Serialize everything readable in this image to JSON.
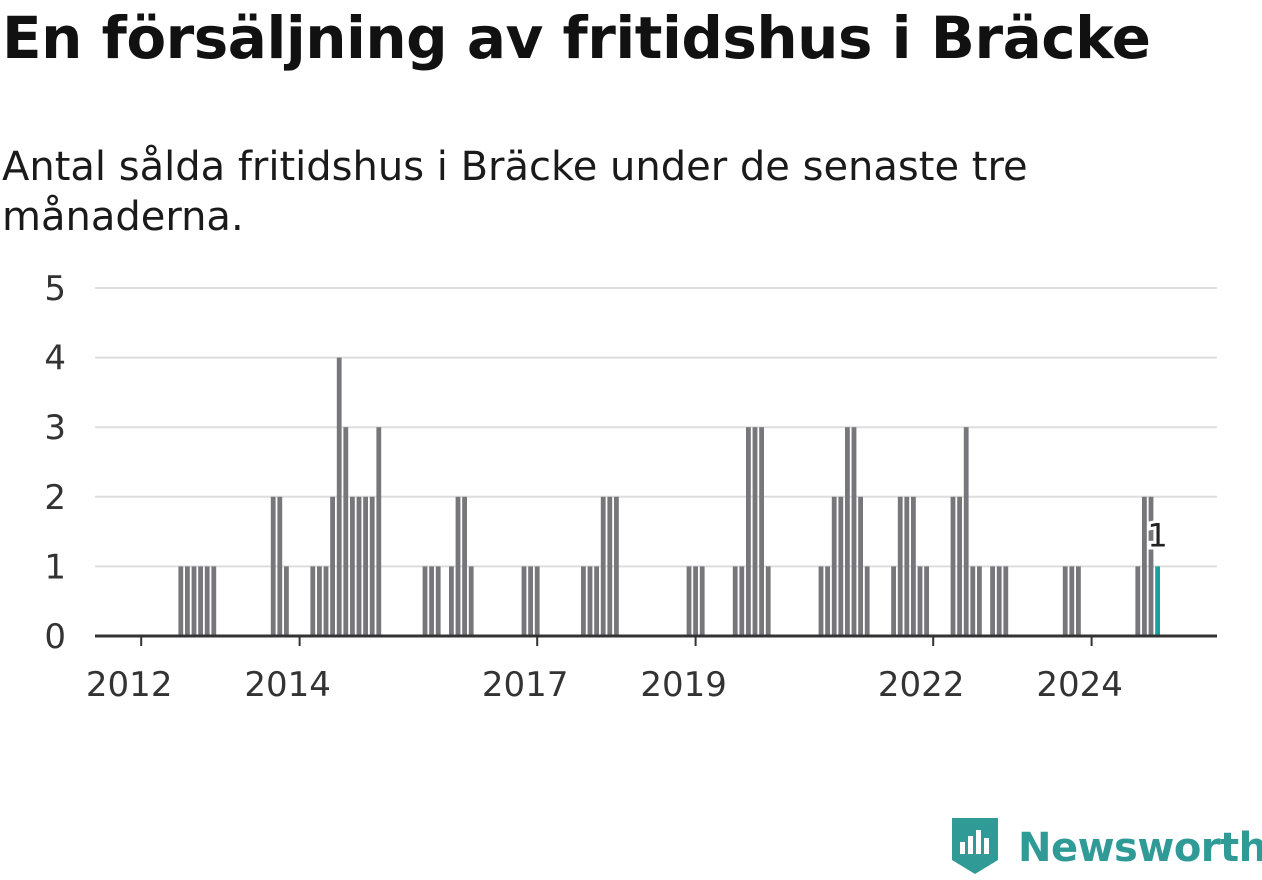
{
  "title": "En försäljning av fritidshus i Bräcke",
  "subtitle": "Antal sålda fritidshus i Bräcke under de senaste tre månaderna.",
  "brand": {
    "name": "Newsworthy",
    "logo_icon": "newsworthy-logo-icon"
  },
  "colors": {
    "bar": "#77767b",
    "highlight": "#17a39a",
    "grid": "#dddddd",
    "axis": "#333333",
    "text": "#333333"
  },
  "chart_data": {
    "type": "bar",
    "title": "En försäljning av fritidshus i Bräcke",
    "subtitle": "Antal sålda fritidshus i Bräcke under de senaste tre månaderna.",
    "xlabel": "",
    "ylabel": "",
    "ylim": [
      0,
      5
    ],
    "yticks": [
      0,
      1,
      2,
      3,
      4,
      5
    ],
    "xlim": [
      "2011-06",
      "2025-08"
    ],
    "xticks": [
      "2012",
      "2014",
      "2017",
      "2019",
      "2022",
      "2024"
    ],
    "grid": true,
    "x": [
      "2012-07",
      "2012-08",
      "2012-09",
      "2012-10",
      "2012-11",
      "2012-12",
      "2013-09",
      "2013-10",
      "2013-11",
      "2014-03",
      "2014-04",
      "2014-05",
      "2014-06",
      "2014-07",
      "2014-08",
      "2014-09",
      "2014-10",
      "2014-11",
      "2014-12",
      "2015-01",
      "2015-08",
      "2015-09",
      "2015-10",
      "2015-12",
      "2016-01",
      "2016-02",
      "2016-03",
      "2016-11",
      "2016-12",
      "2017-01",
      "2017-08",
      "2017-09",
      "2017-10",
      "2017-11",
      "2017-12",
      "2018-01",
      "2018-12",
      "2019-01",
      "2019-02",
      "2019-07",
      "2019-08",
      "2019-09",
      "2019-10",
      "2019-11",
      "2019-12",
      "2020-08",
      "2020-09",
      "2020-10",
      "2020-11",
      "2020-12",
      "2021-01",
      "2021-02",
      "2021-03",
      "2021-07",
      "2021-08",
      "2021-09",
      "2021-10",
      "2021-11",
      "2021-12",
      "2022-04",
      "2022-05",
      "2022-06",
      "2022-07",
      "2022-08",
      "2022-10",
      "2022-11",
      "2022-12",
      "2023-09",
      "2023-10",
      "2023-11",
      "2024-08",
      "2024-09",
      "2024-10",
      "2024-11"
    ],
    "values": [
      1,
      1,
      1,
      1,
      1,
      1,
      2,
      2,
      1,
      1,
      1,
      1,
      2,
      4,
      3,
      2,
      2,
      2,
      2,
      3,
      1,
      1,
      1,
      1,
      2,
      2,
      1,
      1,
      1,
      1,
      1,
      1,
      1,
      2,
      2,
      2,
      1,
      1,
      1,
      1,
      1,
      3,
      3,
      3,
      1,
      1,
      1,
      2,
      2,
      3,
      3,
      2,
      1,
      1,
      2,
      2,
      2,
      1,
      1,
      2,
      2,
      3,
      1,
      1,
      1,
      1,
      1,
      1,
      1,
      1,
      1,
      2,
      2,
      1
    ],
    "highlight": {
      "x": "2024-11",
      "value": 1,
      "label": "1"
    }
  }
}
